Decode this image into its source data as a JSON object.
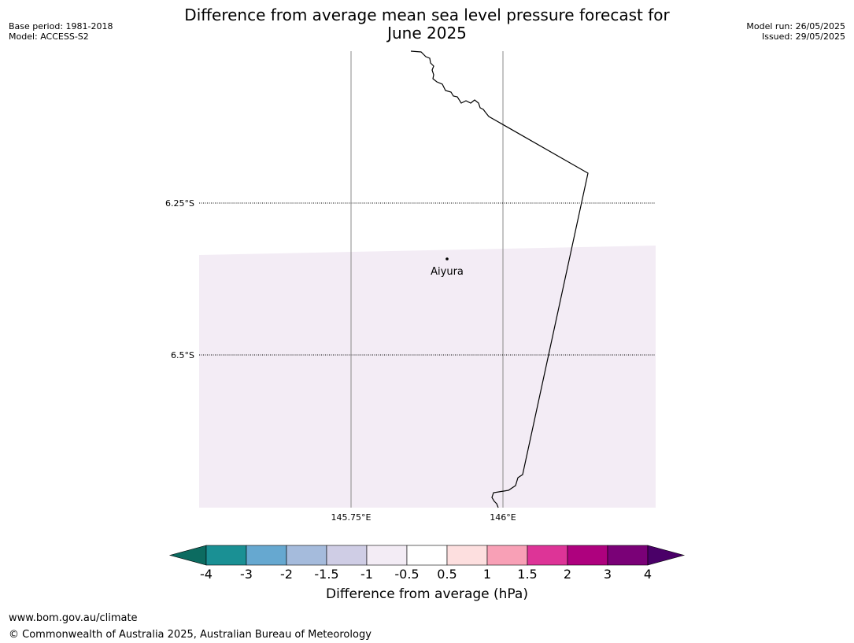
{
  "title_line1": "Difference from average mean sea level pressure forecast for",
  "title_line2": "June 2025",
  "base_period": "Base period: 1981-2018",
  "model": "Model: ACCESS-S2",
  "model_run": "Model run: 26/05/2025",
  "issued": "Issued: 29/05/2025",
  "map": {
    "lat_labels": [
      "6.25°S",
      "6.5°S"
    ],
    "lon_labels": [
      "145.75°E",
      "146°E"
    ],
    "place": {
      "name": "Aiyura"
    },
    "fill_class": "-1 to -0.5",
    "fill_color": "#f3ecf5"
  },
  "colorbar": {
    "label": "Difference from average (hPa)",
    "ticks": [
      "-4",
      "-3",
      "-2",
      "-1.5",
      "-1",
      "-0.5",
      "0.5",
      "1",
      "1.5",
      "2",
      "3",
      "4"
    ],
    "colors": [
      "#1a9094",
      "#66a8d0",
      "#a5bbdc",
      "#cfcde5",
      "#f3ecf5",
      "#ffffff",
      "#fddfdf",
      "#f8a0b6",
      "#dd3497",
      "#ae017e",
      "#7a0177"
    ],
    "under_color": "#0c6b60",
    "over_color": "#4a0068"
  },
  "footer": {
    "url": "www.bom.gov.au/climate",
    "copyright": "© Commonwealth of Australia 2025, Australian Bureau of Meteorology"
  }
}
